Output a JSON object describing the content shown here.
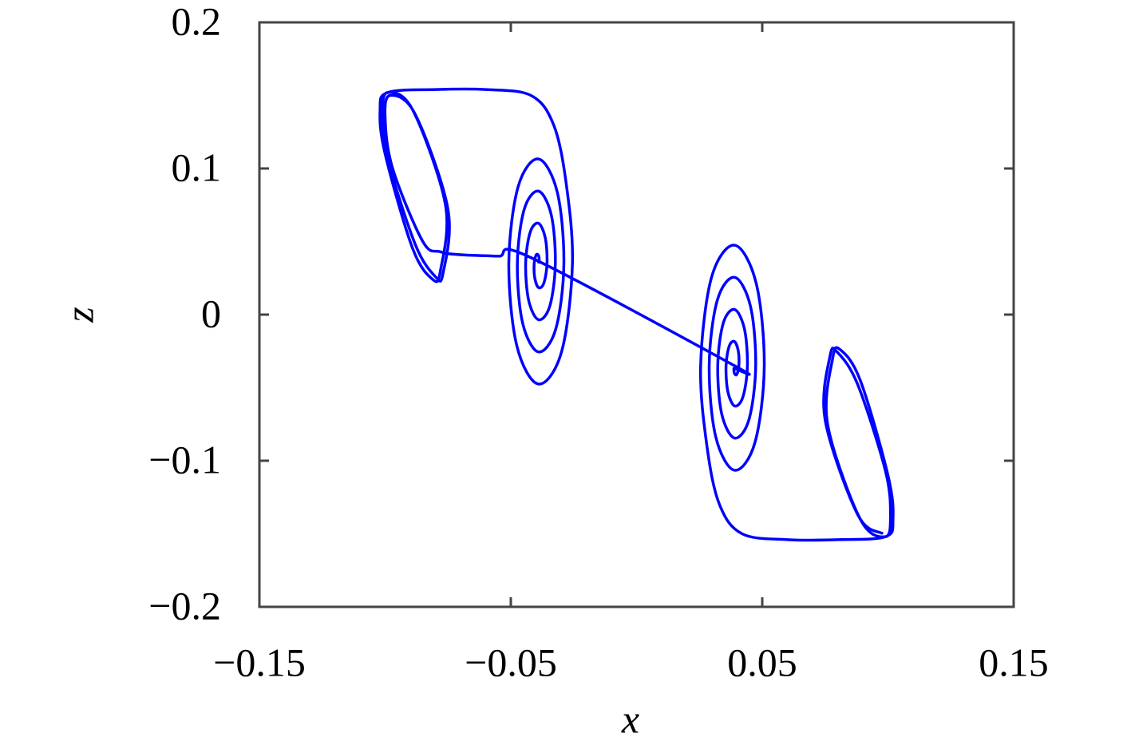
{
  "chart_data": {
    "type": "line",
    "xlabel": "x",
    "ylabel": "z",
    "xlim": [
      -0.15,
      0.15
    ],
    "xticks": [
      {
        "value": -0.15,
        "label": "−0.15"
      },
      {
        "value": -0.05,
        "label": "−0.05"
      },
      0.05,
      0.15
    ],
    "ylim": [
      -0.2,
      0.2
    ],
    "yticks": [
      {
        "value": -0.2,
        "label": "−0.2"
      },
      {
        "value": -0.1,
        "label": "−0.1"
      },
      0,
      0.1,
      0.2
    ],
    "grid": false,
    "x": [
      -0.039,
      -0.0387,
      -0.039,
      -0.0399,
      -0.0407,
      -0.0405,
      -0.039,
      -0.0369,
      -0.0356,
      -0.0363,
      -0.039,
      -0.0423,
      -0.0441,
      -0.0429,
      -0.039,
      -0.0345,
      -0.0323,
      -0.0339,
      -0.039,
      -0.0447,
      -0.0474,
      -0.0453,
      -0.039,
      -0.0321,
      -0.0289,
      -0.0315,
      -0.039,
      -0.0471,
      -0.0508,
      -0.0476,
      -0.039,
      -0.0298,
      -0.0255,
      -0.028,
      -0.033,
      -0.042,
      -0.06,
      -0.08,
      -0.099,
      -0.102,
      -0.1,
      -0.089,
      -0.081,
      -0.078,
      -0.076,
      -0.089,
      -0.099,
      -0.101,
      -0.099,
      -0.088,
      -0.08,
      -0.077,
      -0.075,
      -0.088,
      -0.098,
      -0.1,
      -0.097,
      -0.085,
      -0.078,
      -0.07,
      -0.055,
      -0.042,
      0.039,
      0.0387,
      0.039,
      0.0399,
      0.0407,
      0.0405,
      0.039,
      0.0369,
      0.0356,
      0.0363,
      0.039,
      0.0423,
      0.0441,
      0.0429,
      0.039,
      0.0345,
      0.0323,
      0.0339,
      0.039,
      0.0447,
      0.0474,
      0.0453,
      0.039,
      0.0321,
      0.0289,
      0.0315,
      0.039,
      0.0471,
      0.0508,
      0.0476,
      0.039,
      0.0298,
      0.0255,
      0.028,
      0.033,
      0.042,
      0.06,
      0.08,
      0.099,
      0.102,
      0.1,
      0.089,
      0.081,
      0.078,
      0.076,
      0.089,
      0.099,
      0.101,
      0.099,
      0.088,
      0.08,
      0.077,
      0.075,
      0.088,
      0.098
    ],
    "series": [
      {
        "color": "#0000ff",
        "values": [
          0.035,
          0.0369,
          0.0405,
          0.0408,
          0.035,
          0.0253,
          0.0185,
          0.0214,
          0.035,
          0.0525,
          0.0625,
          0.0564,
          0.035,
          0.0097,
          -0.0035,
          0.0058,
          0.035,
          0.0681,
          0.0845,
          0.0719,
          0.035,
          -0.0058,
          -0.0255,
          -0.0097,
          0.035,
          0.0836,
          0.1065,
          0.0875,
          0.035,
          -0.0214,
          -0.0475,
          -0.0253,
          0.035,
          0.09,
          0.13,
          0.15,
          0.154,
          0.154,
          0.152,
          0.14,
          0.11,
          0.045,
          0.024,
          0.03,
          0.075,
          0.14,
          0.152,
          0.138,
          0.107,
          0.048,
          0.026,
          0.028,
          0.072,
          0.137,
          0.15,
          0.135,
          0.1,
          0.05,
          0.043,
          0.041,
          0.04,
          0.039,
          -0.035,
          -0.0369,
          -0.0405,
          -0.0408,
          -0.035,
          -0.0253,
          -0.0185,
          -0.0214,
          -0.035,
          -0.0525,
          -0.0625,
          -0.0564,
          -0.035,
          -0.0097,
          0.0035,
          -0.0058,
          -0.035,
          -0.0681,
          -0.0845,
          -0.0719,
          -0.035,
          0.0058,
          0.0255,
          0.0097,
          -0.035,
          -0.0836,
          -0.1065,
          -0.0875,
          -0.035,
          0.0214,
          0.0475,
          0.0253,
          -0.035,
          -0.09,
          -0.13,
          -0.15,
          -0.154,
          -0.154,
          -0.152,
          -0.14,
          -0.11,
          -0.045,
          -0.024,
          -0.03,
          -0.075,
          -0.14,
          -0.152,
          -0.138,
          -0.107,
          -0.048,
          -0.026,
          -0.028,
          -0.072,
          -0.137,
          -0.15
        ]
      }
    ]
  }
}
